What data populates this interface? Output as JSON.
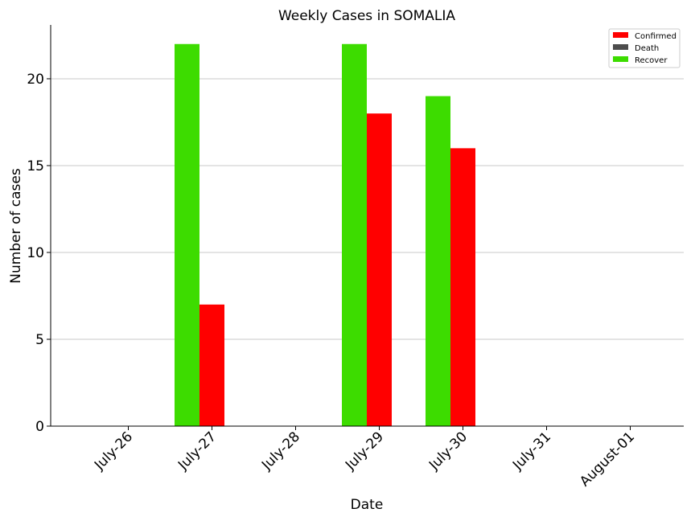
{
  "chart_data": {
    "type": "bar",
    "title": "Weekly Cases in SOMALIA",
    "xlabel": "Date",
    "ylabel": "Number of cases",
    "categories": [
      "July-26",
      "July-27",
      "July-28",
      "July-29",
      "July-30",
      "July-31",
      "August-01"
    ],
    "series": [
      {
        "name": "Recover",
        "color": "#3ddc00",
        "values": [
          0,
          22,
          0,
          22,
          19,
          0,
          0
        ]
      },
      {
        "name": "Confirmed",
        "color": "#ff0000",
        "values": [
          0,
          7,
          0,
          18,
          16,
          0,
          0
        ]
      },
      {
        "name": "Death",
        "color": "#4d4d4d",
        "values": [
          0,
          0,
          0,
          0,
          0,
          0,
          0
        ]
      }
    ],
    "legend_order": [
      "Confirmed",
      "Death",
      "Recover"
    ],
    "yticks": [
      0,
      5,
      10,
      15,
      20
    ],
    "ylim": [
      0,
      23.1
    ],
    "grid": "horizontal",
    "legend_position": "top-right"
  }
}
